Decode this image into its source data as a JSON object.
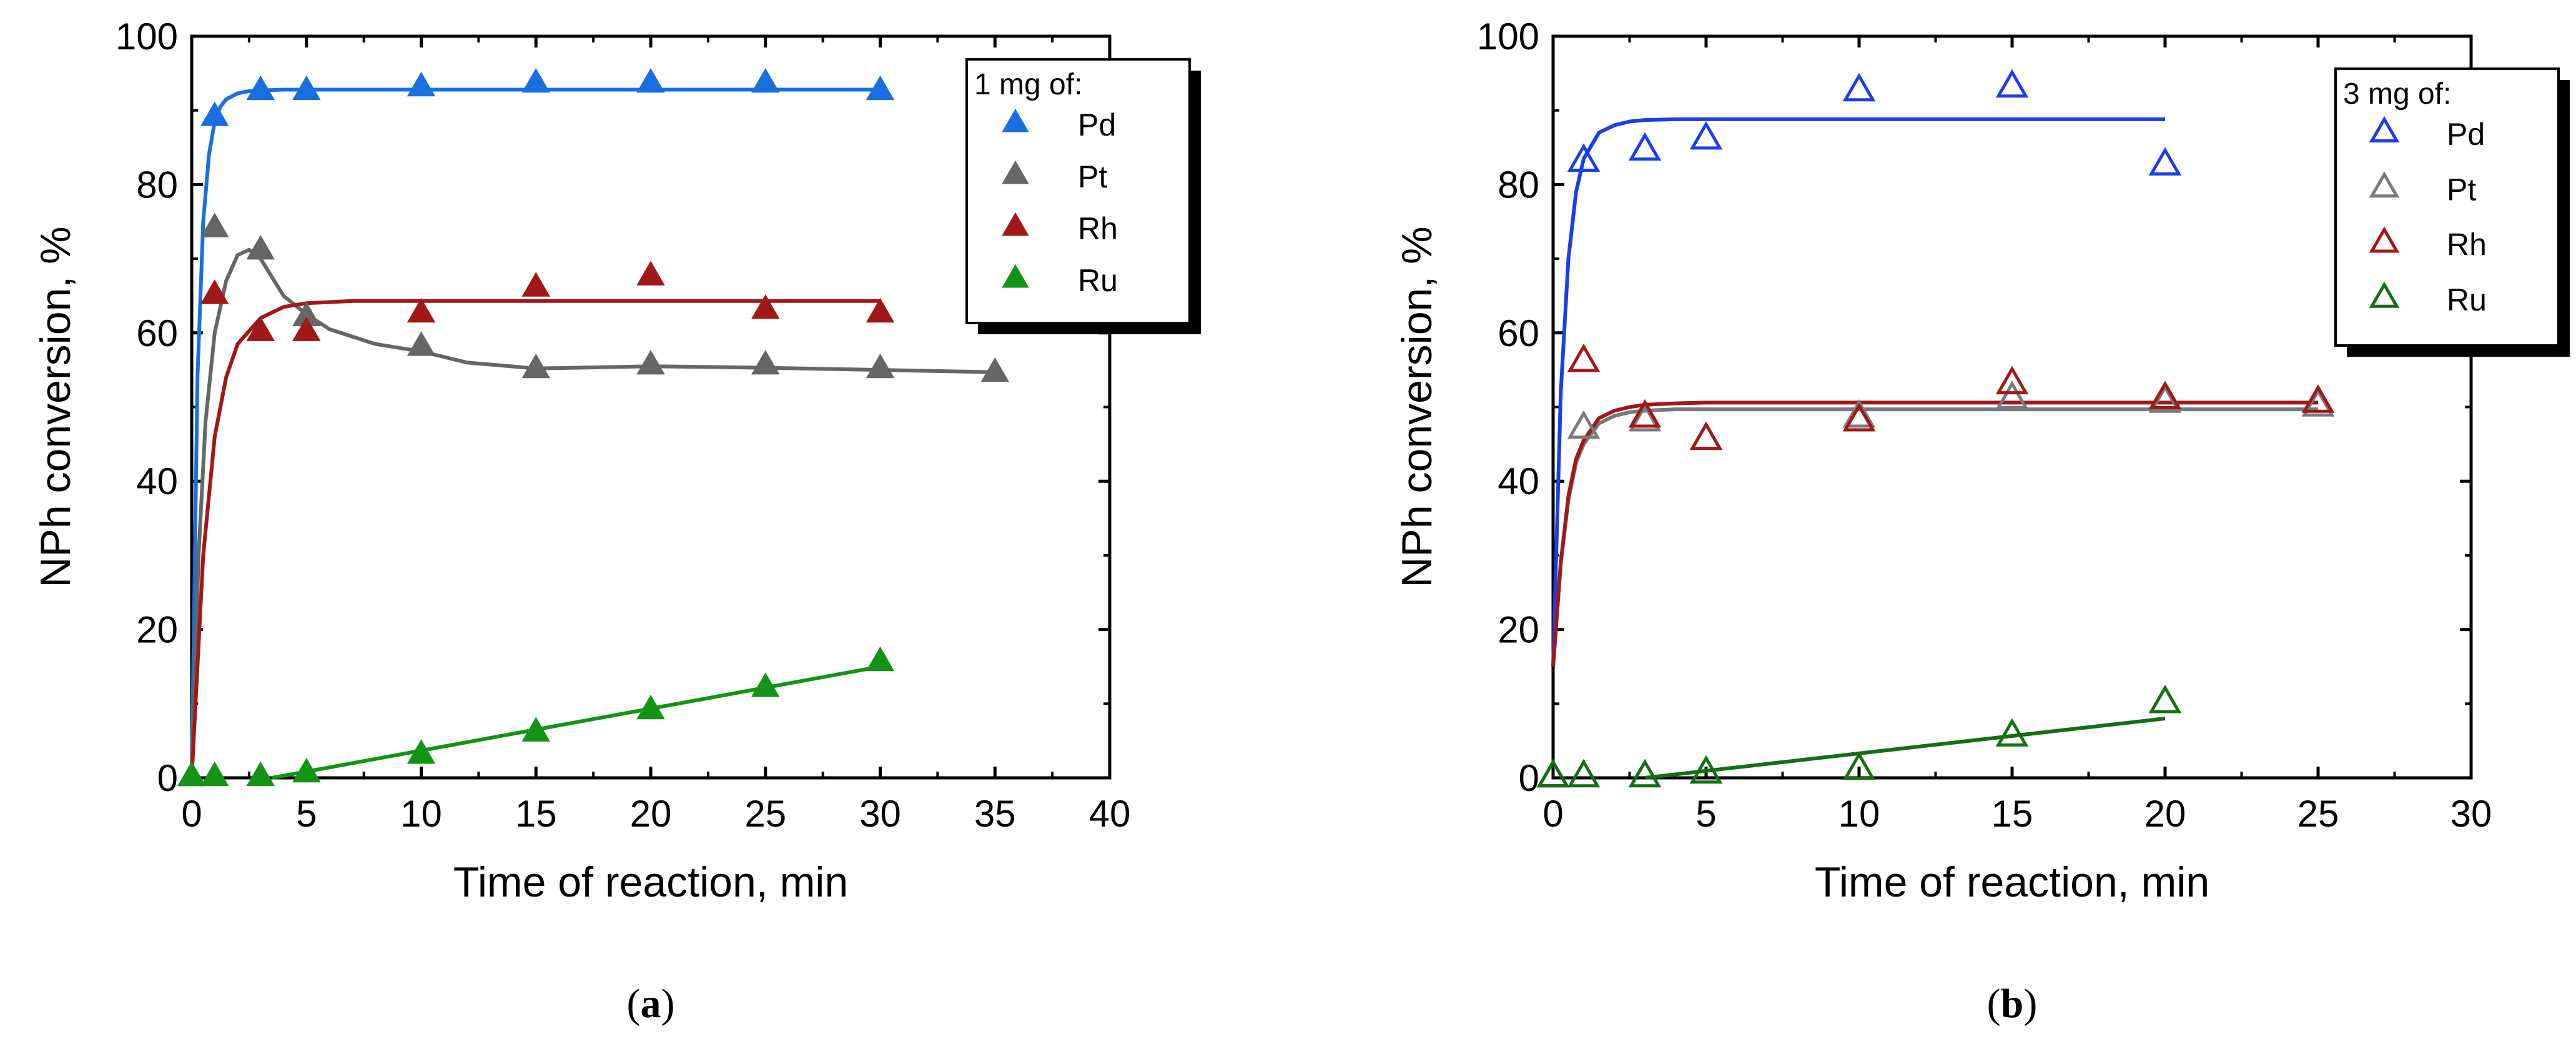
{
  "chart_data": [
    {
      "type": "scatter",
      "panel_label": "a",
      "caption_open": "(",
      "caption_close": ")",
      "xlabel": "Time of reaction, min",
      "ylabel": "NPh conversion, %",
      "xlim": [
        0,
        40
      ],
      "ylim": [
        0,
        100
      ],
      "xticks": [
        "0",
        "5",
        "10",
        "15",
        "20",
        "25",
        "30",
        "35",
        "40"
      ],
      "yticks": [
        "0",
        "20",
        "40",
        "60",
        "80",
        "100"
      ],
      "legend_title": "1 mg of:",
      "legend_position": "top-right",
      "marker_fill": "filled",
      "series": [
        {
          "name": "Pd",
          "color": "#1a6fe0",
          "x": [
            0,
            1,
            3,
            5,
            10,
            15,
            20,
            25,
            30
          ],
          "y": [
            0,
            89,
            92.5,
            92.5,
            93,
            93.5,
            93.5,
            93.5,
            92.5
          ],
          "fit_x": [
            0,
            0.25,
            0.5,
            0.75,
            1,
            1.25,
            1.5,
            2,
            2.5,
            3,
            4,
            5,
            10,
            20,
            30
          ],
          "fit_y": [
            0,
            54,
            75,
            84,
            88.5,
            90.5,
            91.5,
            92.3,
            92.6,
            92.7,
            92.8,
            92.8,
            92.8,
            92.8,
            92.8
          ]
        },
        {
          "name": "Pt",
          "color": "#666666",
          "x": [
            0,
            1,
            3,
            5,
            10,
            15,
            20,
            25,
            30,
            35
          ],
          "y": [
            0,
            74,
            71,
            62,
            58,
            55,
            55.5,
            55.5,
            55,
            54.5
          ],
          "fit_x": [
            0,
            0.3,
            0.6,
            1,
            1.5,
            2,
            2.5,
            3,
            3.5,
            4,
            5,
            6,
            8,
            10,
            12,
            15,
            20,
            25,
            30,
            35
          ],
          "fit_y": [
            0,
            30,
            48,
            60,
            67,
            70.5,
            71.2,
            70,
            67.5,
            65,
            62.5,
            60.5,
            58.5,
            57.5,
            56,
            55.2,
            55.5,
            55.3,
            55,
            54.7
          ]
        },
        {
          "name": "Rh",
          "color": "#a01818",
          "x": [
            0,
            1,
            3,
            5,
            10,
            15,
            20,
            25,
            30
          ],
          "y": [
            0,
            65,
            60,
            60,
            62.5,
            66,
            67.5,
            63,
            62.5
          ],
          "fit_x": [
            0,
            0.5,
            1,
            1.5,
            2,
            3,
            4,
            5,
            7,
            10,
            20,
            30
          ],
          "fit_y": [
            0,
            30,
            46,
            54,
            58.5,
            62,
            63.5,
            64,
            64.3,
            64.3,
            64.3,
            64.3
          ]
        },
        {
          "name": "Ru",
          "color": "#149414",
          "x": [
            0,
            1,
            3,
            5,
            10,
            15,
            20,
            25,
            30
          ],
          "y": [
            0,
            0,
            0,
            0.5,
            3,
            6,
            9,
            12,
            15.5
          ],
          "fit_x": [
            3.5,
            30
          ],
          "fit_y": [
            0,
            15
          ]
        }
      ]
    },
    {
      "type": "scatter",
      "panel_label": "b",
      "caption_open": "(",
      "caption_close": ")",
      "xlabel": "Time of reaction, min",
      "ylabel": "NPh conversion, %",
      "xlim": [
        0,
        30
      ],
      "ylim": [
        0,
        100
      ],
      "xticks": [
        "0",
        "5",
        "10",
        "15",
        "20",
        "25",
        "30"
      ],
      "yticks": [
        "0",
        "20",
        "40",
        "60",
        "80",
        "100"
      ],
      "legend_title": "3 mg of:",
      "legend_position": "top-right",
      "marker_fill": "open",
      "series": [
        {
          "name": "Pd",
          "color": "#1a3ee8",
          "x": [
            0,
            1,
            3,
            5,
            10,
            15,
            20
          ],
          "y": [
            0,
            83,
            84.5,
            86,
            92.5,
            93,
            82.5
          ],
          "fit_x": [
            0,
            0.25,
            0.5,
            0.75,
            1,
            1.5,
            2,
            2.5,
            3,
            4,
            5,
            10,
            20
          ],
          "fit_y": [
            15,
            52,
            70,
            79,
            83.5,
            87,
            88,
            88.5,
            88.7,
            88.8,
            88.8,
            88.8,
            88.8
          ]
        },
        {
          "name": "Pt",
          "color": "#7a7a7a",
          "x": [
            0,
            1,
            3,
            5,
            10,
            15,
            20,
            25
          ],
          "y": [
            0,
            47,
            48,
            45.5,
            48.5,
            51,
            50.5,
            50
          ],
          "fit_x": [
            0,
            0.25,
            0.5,
            0.75,
            1,
            1.5,
            2,
            2.5,
            3,
            4,
            5,
            10,
            20,
            25
          ],
          "fit_y": [
            15,
            29,
            37.5,
            42.5,
            45,
            47.8,
            48.8,
            49.3,
            49.5,
            49.7,
            49.7,
            49.7,
            49.7,
            49.7
          ]
        },
        {
          "name": "Rh",
          "color": "#a01818",
          "x": [
            0,
            1,
            3,
            5,
            10,
            15,
            20,
            25
          ],
          "y": [
            0,
            56,
            48.5,
            45.5,
            48,
            53,
            51,
            50.5
          ],
          "fit_x": [
            0,
            0.25,
            0.5,
            0.75,
            1,
            1.5,
            2,
            2.5,
            3,
            4,
            5,
            10,
            20,
            25
          ],
          "fit_y": [
            15,
            29,
            38,
            43,
            45.5,
            48.5,
            49.5,
            50,
            50.3,
            50.5,
            50.6,
            50.6,
            50.6,
            50.6
          ]
        },
        {
          "name": "Ru",
          "color": "#127012",
          "x": [
            0,
            1,
            3,
            5,
            10,
            15,
            20
          ],
          "y": [
            0,
            0,
            0,
            0.5,
            1,
            5.5,
            10
          ],
          "fit_x": [
            3,
            20
          ],
          "fit_y": [
            0,
            8
          ]
        }
      ]
    }
  ]
}
